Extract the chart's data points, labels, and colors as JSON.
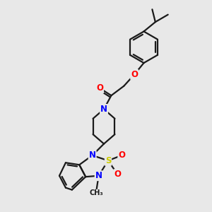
{
  "background_color": "#e8e8e8",
  "line_color": "#1a1a1a",
  "bond_width": 1.6,
  "atom_colors": {
    "N": "#0000ff",
    "O": "#ff0000",
    "S": "#cccc00",
    "C": "#1a1a1a"
  },
  "font_size_atom": 8.5,
  "figsize": [
    3.0,
    3.0
  ],
  "dpi": 100,
  "xlim": [
    0,
    10
  ],
  "ylim": [
    0,
    10
  ]
}
